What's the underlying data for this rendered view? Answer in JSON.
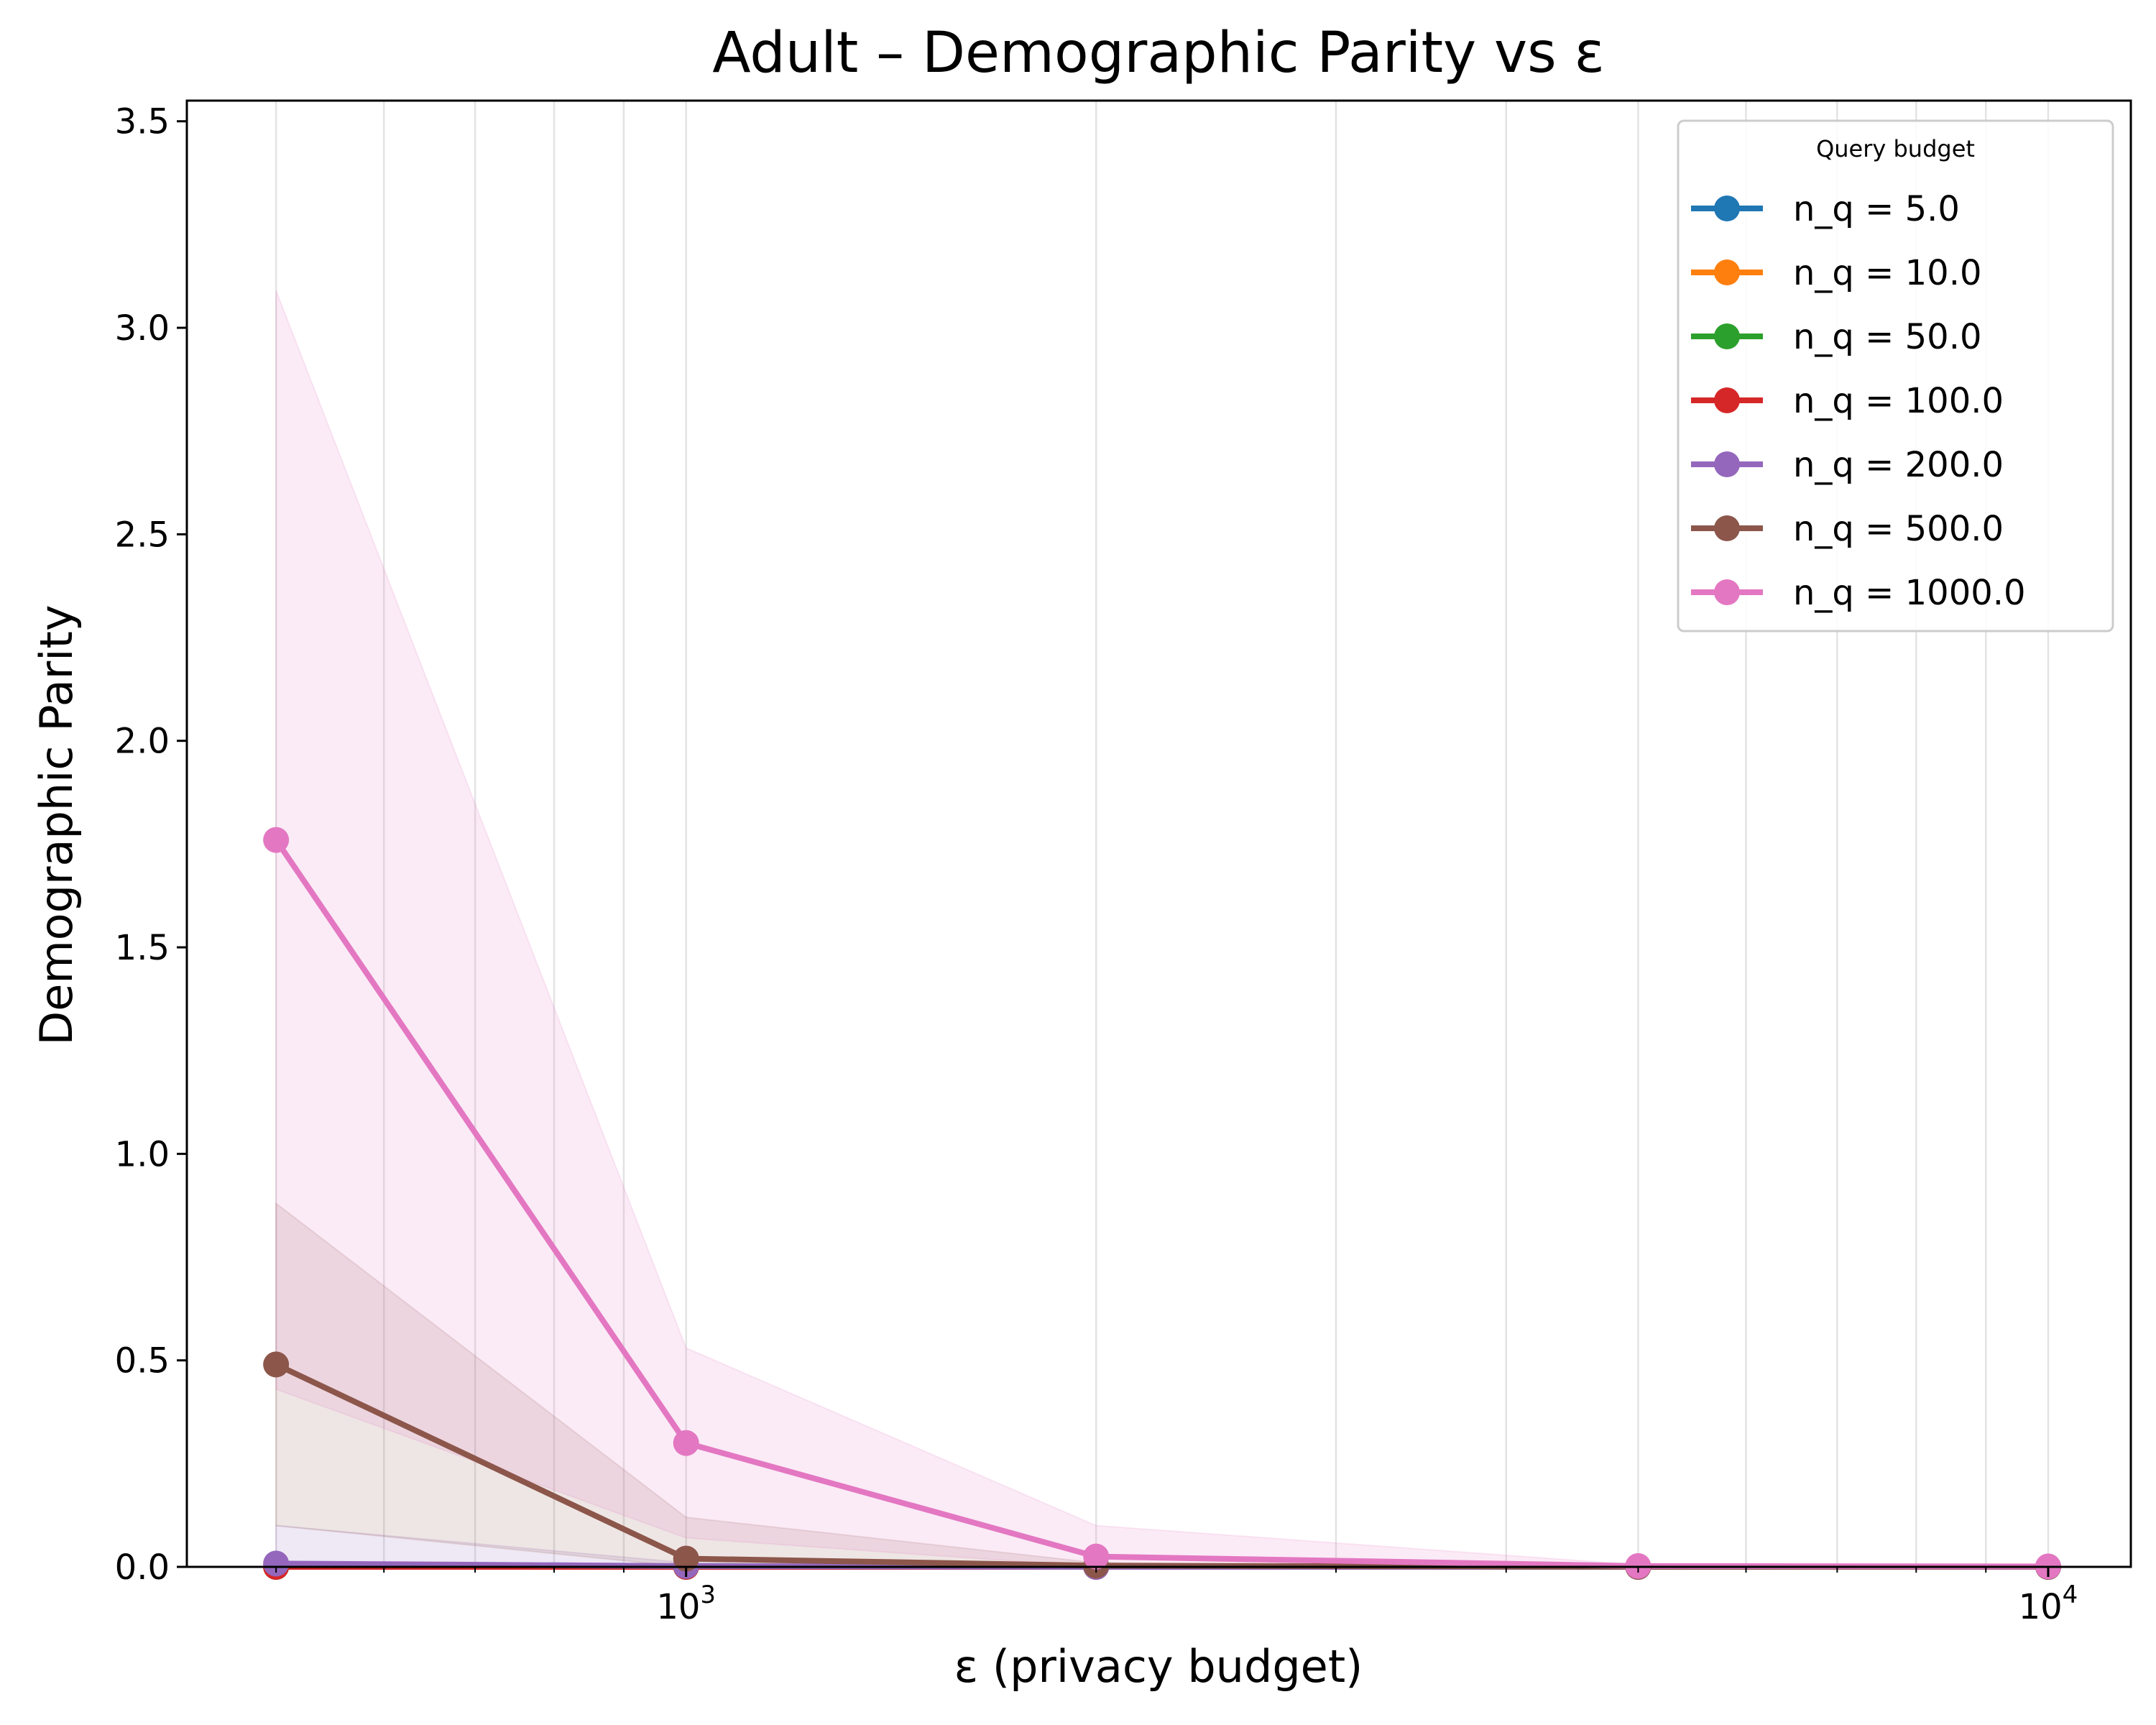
{
  "chart_data": {
    "type": "line",
    "title": "Adult – Demographic Parity vs ε",
    "xlabel": "ε (privacy budget)",
    "ylabel": "Demographic Parity",
    "xscale": "log",
    "xlim": [
      430,
      11500
    ],
    "ylim": [
      0,
      3.55
    ],
    "yticks": [
      "0.0",
      "0.5",
      "1.0",
      "1.5",
      "2.0",
      "2.5",
      "3.0",
      "3.5"
    ],
    "xticks_major": [
      {
        "base": "10",
        "exp": "3",
        "value": 1000
      },
      {
        "base": "10",
        "exp": "4",
        "value": 10000
      }
    ],
    "grid": "x-minor",
    "x": [
      500,
      1000,
      2000,
      5000,
      10000
    ],
    "legend": {
      "title": "Query budget",
      "position": "upper right",
      "entries": [
        "n_q = 5.0",
        "n_q = 10.0",
        "n_q = 50.0",
        "n_q = 100.0",
        "n_q = 200.0",
        "n_q = 500.0",
        "n_q = 1000.0"
      ]
    },
    "series": [
      {
        "name": "n_q = 5.0",
        "color": "#1f77b4",
        "values": [
          0.0,
          0.0,
          0.0,
          0.0,
          0.0
        ],
        "upper": [
          0.0,
          0.0,
          0.0,
          0.0,
          0.0
        ],
        "lower": [
          0.0,
          0.0,
          0.0,
          0.0,
          0.0
        ]
      },
      {
        "name": "n_q = 10.0",
        "color": "#ff7f0e",
        "values": [
          0.0,
          0.0,
          0.0,
          0.0,
          0.0
        ],
        "upper": [
          0.0,
          0.0,
          0.0,
          0.0,
          0.0
        ],
        "lower": [
          0.0,
          0.0,
          0.0,
          0.0,
          0.0
        ]
      },
      {
        "name": "n_q = 50.0",
        "color": "#2ca02c",
        "values": [
          0.0,
          0.0,
          0.0,
          0.0,
          0.0
        ],
        "upper": [
          0.0,
          0.0,
          0.0,
          0.0,
          0.0
        ],
        "lower": [
          0.0,
          0.0,
          0.0,
          0.0,
          0.0
        ]
      },
      {
        "name": "n_q = 100.0",
        "color": "#d62728",
        "values": [
          0.0,
          0.0,
          0.0,
          0.0,
          0.0
        ],
        "upper": [
          0.0,
          0.0,
          0.0,
          0.0,
          0.0
        ],
        "lower": [
          0.0,
          0.0,
          0.0,
          0.0,
          0.0
        ]
      },
      {
        "name": "n_q = 200.0",
        "color": "#9467bd",
        "values": [
          0.008,
          0.002,
          0.0,
          0.0,
          0.0
        ],
        "upper": [
          0.1,
          0.01,
          0.0,
          0.0,
          0.0
        ],
        "lower": [
          0.0,
          0.0,
          0.0,
          0.0,
          0.0
        ]
      },
      {
        "name": "n_q = 500.0",
        "color": "#8c564b",
        "values": [
          0.49,
          0.02,
          0.003,
          0.0,
          0.0
        ],
        "upper": [
          0.88,
          0.12,
          0.01,
          0.0,
          0.0
        ],
        "lower": [
          0.1,
          0.0,
          0.0,
          0.0,
          0.0
        ]
      },
      {
        "name": "n_q = 1000.0",
        "color": "#e377c2",
        "values": [
          1.76,
          0.3,
          0.025,
          0.002,
          0.001
        ],
        "upper": [
          3.09,
          0.53,
          0.1,
          0.005,
          0.003
        ],
        "lower": [
          0.43,
          0.07,
          0.0,
          0.0,
          0.0
        ]
      }
    ]
  }
}
